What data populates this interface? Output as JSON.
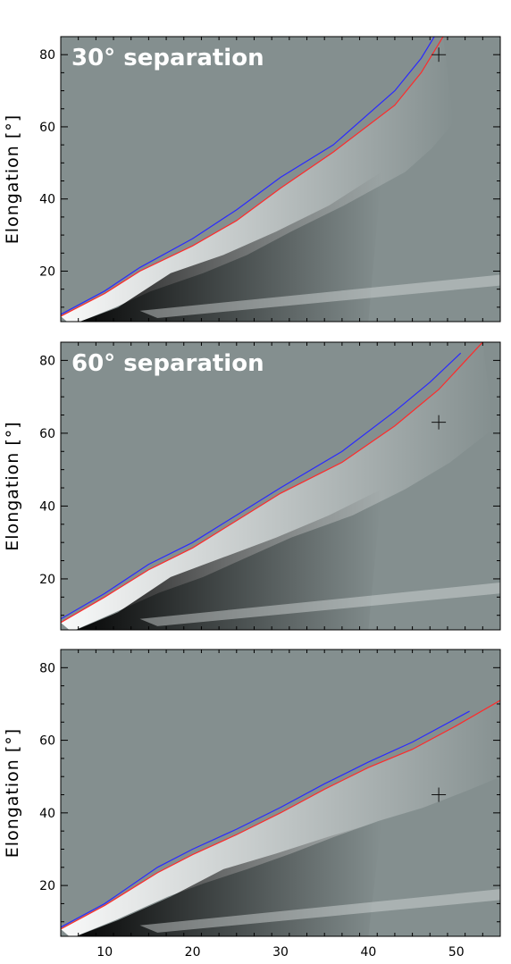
{
  "chart_data": [
    {
      "type": "heatmap",
      "title": "30° separation",
      "xlabel": "",
      "ylabel": "Elongation [°]",
      "xlim": [
        5,
        55
      ],
      "ylim": [
        6,
        85
      ],
      "x_ticks": [
        10,
        20,
        30,
        40,
        50
      ],
      "y_ticks": [
        20,
        40,
        60,
        80
      ],
      "x_tick_labels_shown": false,
      "series": [
        {
          "color": "#2a2aff",
          "x": [
            5,
            10,
            14,
            20,
            25,
            30,
            36,
            43,
            46,
            48
          ],
          "y": [
            8,
            14.5,
            21,
            29,
            37,
            46,
            55,
            70,
            79,
            87
          ]
        },
        {
          "color": "#ff2a2a",
          "x": [
            5,
            10,
            14,
            20,
            25,
            30,
            36,
            43,
            46,
            48.5
          ],
          "y": [
            7.5,
            13.8,
            20,
            27,
            34,
            43,
            53,
            66,
            75,
            85
          ]
        }
      ],
      "marker": {
        "symbol": "+",
        "x": 48,
        "y": 80
      },
      "colormap": "gray"
    },
    {
      "type": "heatmap",
      "title": "60° separation",
      "xlabel": "",
      "ylabel": "Elongation [°]",
      "xlim": [
        5,
        55
      ],
      "ylim": [
        6,
        85
      ],
      "x_ticks": [
        10,
        20,
        30,
        40,
        50
      ],
      "y_ticks": [
        20,
        40,
        60,
        80
      ],
      "x_tick_labels_shown": false,
      "series": [
        {
          "color": "#2a2aff",
          "x": [
            5,
            10,
            15,
            20,
            25,
            30,
            37,
            43,
            47,
            50.5
          ],
          "y": [
            9,
            16,
            24,
            30,
            37.5,
            45,
            55,
            66,
            74,
            82
          ]
        },
        {
          "color": "#ff2a2a",
          "x": [
            5,
            10,
            15,
            20,
            25,
            30,
            37,
            43,
            48,
            53
          ],
          "y": [
            8,
            15,
            22.5,
            28.5,
            36,
            43.5,
            52,
            62,
            72,
            85
          ]
        }
      ],
      "marker": {
        "symbol": "+",
        "x": 48,
        "y": 63
      },
      "colormap": "gray"
    },
    {
      "type": "heatmap",
      "title": "",
      "xlabel": "",
      "ylabel": "Elongation [°]",
      "xlim": [
        5,
        55
      ],
      "ylim": [
        6,
        85
      ],
      "x_ticks": [
        10,
        20,
        30,
        40,
        50
      ],
      "y_ticks": [
        20,
        40,
        60,
        80
      ],
      "x_tick_labels_shown": true,
      "series": [
        {
          "color": "#2a2aff",
          "x": [
            5,
            10,
            16,
            20,
            25,
            30,
            35,
            40,
            45,
            51.5
          ],
          "y": [
            8.5,
            15,
            25,
            30,
            35.5,
            41.5,
            48,
            54,
            59.5,
            68
          ]
        },
        {
          "color": "#ff2a2a",
          "x": [
            5,
            10,
            16,
            20,
            25,
            30,
            35,
            40,
            45,
            50,
            55
          ],
          "y": [
            8,
            14.5,
            23.5,
            28.5,
            34,
            40,
            46.5,
            52.5,
            57.5,
            64,
            71
          ]
        }
      ],
      "marker": {
        "symbol": "+",
        "x": 48,
        "y": 45
      },
      "colormap": "gray"
    }
  ]
}
